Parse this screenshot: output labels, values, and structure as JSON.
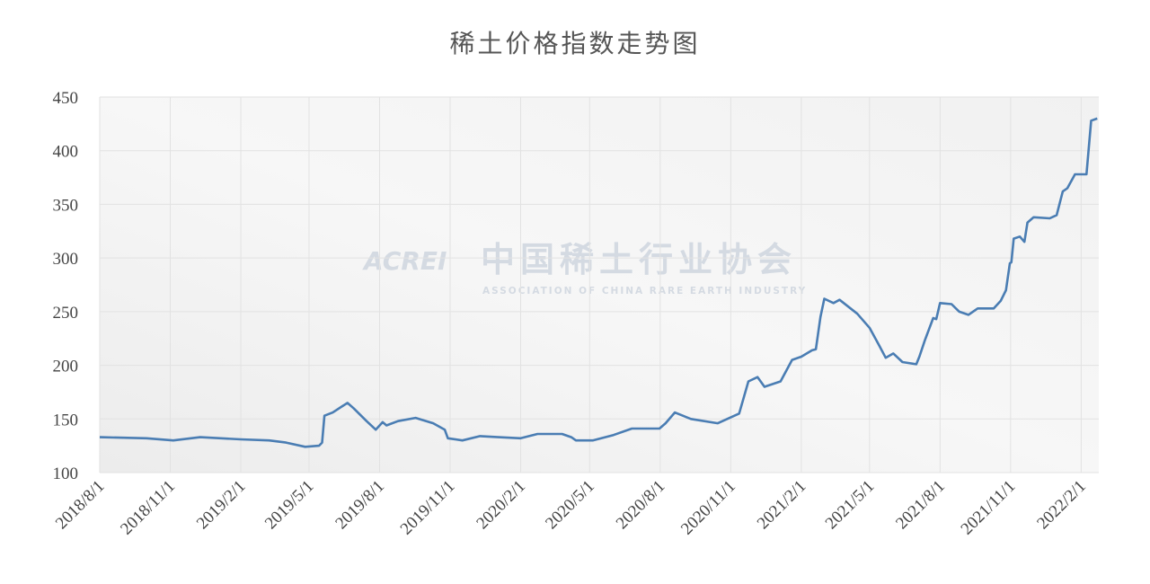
{
  "chart_data": {
    "type": "line",
    "title": "稀土价格指数走势图",
    "watermark": {
      "logo": "ACREI",
      "name": "中国稀土行业协会",
      "subtitle": "ASSOCIATION OF CHINA RARE EARTH INDUSTRY"
    },
    "x": [
      "2018/8/1",
      "2018/10/1",
      "2018/11/5",
      "2018/12/10",
      "2019/2/1",
      "2019/3/10",
      "2019/4/1",
      "2019/4/26",
      "2019/5/14",
      "2019/5/18",
      "2019/5/21",
      "2019/6/1",
      "2019/6/20",
      "2019/6/28",
      "2019/7/15",
      "2019/7/27",
      "2019/8/5",
      "2019/8/10",
      "2019/8/25",
      "2019/9/17",
      "2019/10/10",
      "2019/10/25",
      "2019/10/29",
      "2019/11/17",
      "2019/12/10",
      "2020/1/3",
      "2020/2/1",
      "2020/2/23",
      "2020/3/26",
      "2020/4/7",
      "2020/4/13",
      "2020/5/5",
      "2020/6/1",
      "2020/6/25",
      "2020/7/31",
      "2020/8/8",
      "2020/8/20",
      "2020/9/10",
      "2020/10/15",
      "2020/11/12",
      "2020/11/24",
      "2020/12/6",
      "2020/12/15",
      "2021/1/5",
      "2021/1/20",
      "2021/2/1",
      "2021/2/15",
      "2021/2/20",
      "2021/2/26",
      "2021/3/3",
      "2021/3/15",
      "2021/3/23",
      "2021/4/15",
      "2021/5/1",
      "2021/5/14",
      "2021/5/22",
      "2021/6/1",
      "2021/6/13",
      "2021/7/1",
      "2021/7/5",
      "2021/7/12",
      "2021/7/23",
      "2021/7/27",
      "2021/8/1",
      "2021/8/16",
      "2021/8/26",
      "2021/9/7",
      "2021/9/19",
      "2021/10/10",
      "2021/10/19",
      "2021/10/26",
      "2021/10/31",
      "2021/11/2",
      "2021/11/5",
      "2021/11/13",
      "2021/11/19",
      "2021/11/23",
      "2021/12/1",
      "2021/12/22",
      "2021/12/31",
      "2022/1/8",
      "2022/1/14",
      "2022/1/24",
      "2022/2/8",
      "2022/2/14",
      "2022/2/22"
    ],
    "series": [
      {
        "name": "稀土价格指数",
        "color": "#4a7db3",
        "values": [
          133,
          132,
          130,
          133,
          131,
          130,
          128,
          124,
          125,
          128,
          153,
          156,
          165,
          160,
          148,
          140,
          147,
          144,
          148,
          151,
          146,
          140,
          132,
          130,
          134,
          133,
          132,
          136,
          136,
          133,
          130,
          130,
          135,
          141,
          141,
          146,
          156,
          150,
          146,
          155,
          185,
          189,
          180,
          185,
          205,
          208,
          214,
          215,
          245,
          262,
          258,
          261,
          248,
          235,
          218,
          207,
          211,
          203,
          201,
          208,
          223,
          244,
          243,
          258,
          257,
          250,
          247,
          253,
          253,
          260,
          270,
          295,
          296,
          318,
          320,
          315,
          333,
          338,
          337,
          340,
          362,
          365,
          378,
          378,
          428,
          430
        ]
      }
    ],
    "xlim": [
      "2018/8/1",
      "2022/2/24"
    ],
    "xticks": [
      "2018/8/1",
      "2018/11/1",
      "2019/2/1",
      "2019/5/1",
      "2019/8/1",
      "2019/11/1",
      "2020/2/1",
      "2020/5/1",
      "2020/8/1",
      "2020/11/1",
      "2021/2/1",
      "2021/5/1",
      "2021/8/1",
      "2021/11/1",
      "2022/2/1"
    ],
    "ylim": [
      100,
      450
    ],
    "yticks": [
      100,
      150,
      200,
      250,
      300,
      350,
      400,
      450
    ],
    "grid": true
  }
}
